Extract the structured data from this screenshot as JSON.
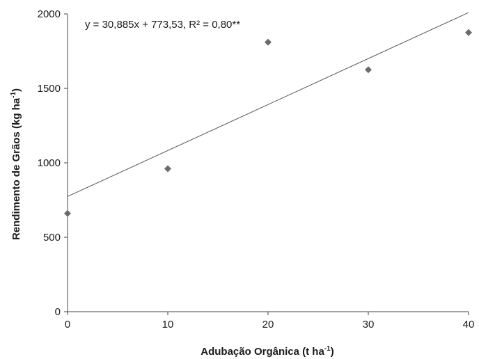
{
  "chart_data": {
    "type": "scatter",
    "x": [
      0,
      10,
      20,
      30,
      40
    ],
    "y": [
      660,
      960,
      1810,
      1625,
      1875
    ],
    "xlim": [
      0,
      40
    ],
    "ylim": [
      0,
      2000
    ],
    "xticks": [
      0,
      10,
      20,
      30,
      40
    ],
    "yticks": [
      0,
      500,
      1000,
      1500,
      2000
    ],
    "xlabel_parts": [
      "Adubação Orgânica (t ha",
      "-1",
      ")"
    ],
    "ylabel_parts": [
      "Rendimento de Grãos (kg ha",
      "-1",
      ")"
    ],
    "trendline": {
      "type": "linear",
      "slope": 30.885,
      "intercept": 773.53,
      "equation": "y = 30,885x + 773,53, R² = 0,80**"
    },
    "grid": false,
    "marker": "diamond",
    "colors": {
      "marker": "#6b6b6b",
      "line": "#555555",
      "axis": "#444444",
      "text": "#1a1a1a"
    }
  }
}
